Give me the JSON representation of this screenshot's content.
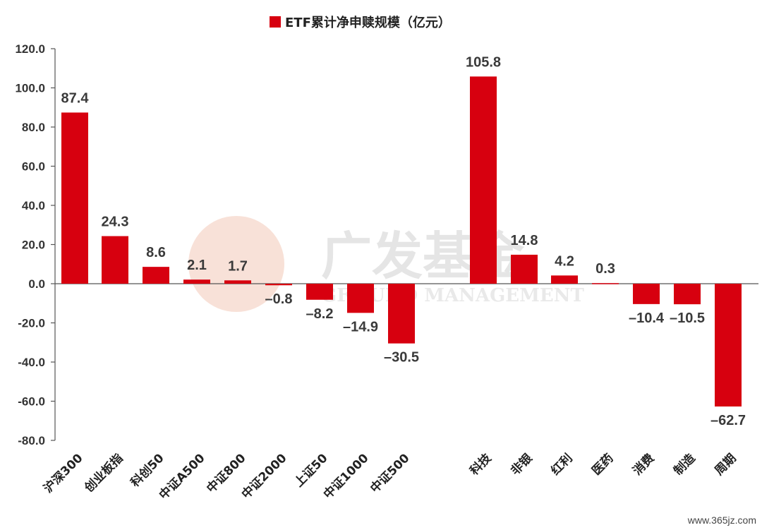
{
  "chart_data": {
    "type": "bar",
    "title": "",
    "legend": [
      "ETF累计净申赎规模（亿元）"
    ],
    "legend_position": "top-center",
    "xlabel": "",
    "ylabel": "",
    "ylim": [
      -80,
      120
    ],
    "yticks": [
      "120.0",
      "100.0",
      "80.0",
      "60.0",
      "40.0",
      "20.0",
      "0.0",
      "-20.0",
      "-40.0",
      "-60.0",
      "-80.0"
    ],
    "grid": false,
    "bar_color": "#d7000f",
    "categories": [
      "沪深300",
      "创业板指",
      "科创50",
      "中证A500",
      "中证800",
      "中证2000",
      "上证50",
      "中证1000",
      "中证500",
      "科技",
      "非银",
      "红利",
      "医药",
      "消费",
      "制造",
      "周期"
    ],
    "values": [
      87.4,
      24.3,
      8.6,
      2.1,
      1.7,
      -0.8,
      -8.2,
      -14.9,
      -30.5,
      105.8,
      14.8,
      4.2,
      0.3,
      -10.4,
      -10.5,
      -62.7
    ],
    "data_labels": [
      "87.4",
      "24.3",
      "8.6",
      "2.1",
      "1.7",
      "–0.8",
      "–8.2",
      "–14.9",
      "–30.5",
      "105.8",
      "14.8",
      "4.2",
      "0.3",
      "–10.4",
      "–10.5",
      "–62.7"
    ]
  },
  "watermark": {
    "cn": "广发基金",
    "en": "GF FUND MANAGEMENT"
  },
  "site": "www.365jz.com"
}
